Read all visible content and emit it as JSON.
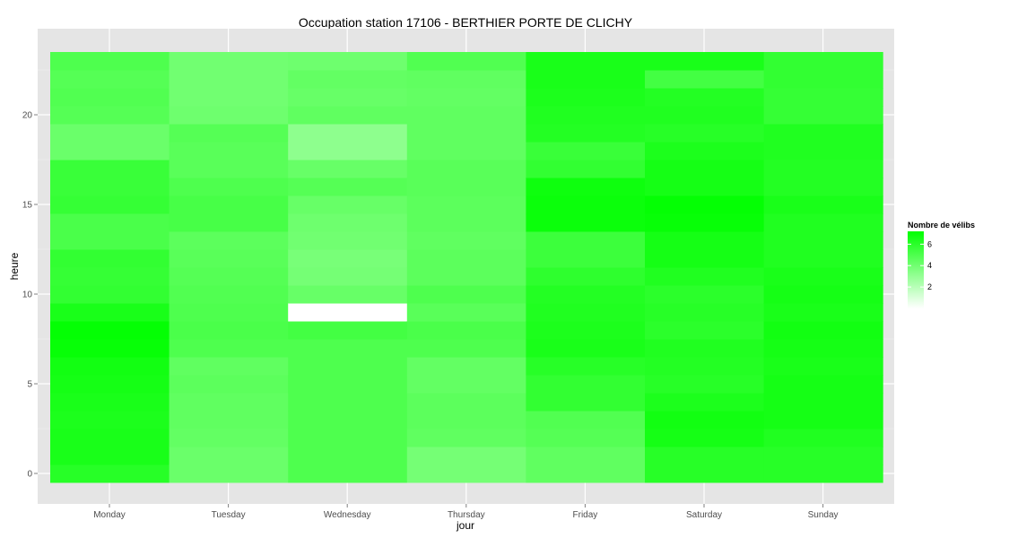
{
  "chart_data": {
    "type": "heatmap",
    "title": "Occupation station 17106 - BERTHIER PORTE DE CLICHY",
    "xlabel": "jour",
    "ylabel": "heure",
    "x_categories": [
      "Monday",
      "Tuesday",
      "Wednesday",
      "Thursday",
      "Friday",
      "Saturday",
      "Sunday"
    ],
    "y_ticks": [
      0,
      5,
      10,
      15,
      20
    ],
    "y_range": [
      -0.5,
      23.5
    ],
    "grid": true,
    "legend": {
      "title": "Nombre de vélibs",
      "ticks": [
        2,
        4,
        6
      ],
      "range": [
        0,
        7.2
      ],
      "low_color": "#ffffff",
      "high_color": "#00ff00",
      "placement": "right"
    },
    "missing": [
      {
        "day": "Wednesday",
        "hour": 9
      }
    ],
    "values": {
      "Monday": [
        6.1,
        6.5,
        6.5,
        6.4,
        6.5,
        6.6,
        6.7,
        7.0,
        7.1,
        6.5,
        5.8,
        5.7,
        5.8,
        5.1,
        5.1,
        5.7,
        5.6,
        5.6,
        4.2,
        4.2,
        4.8,
        4.9,
        4.8,
        5.0
      ],
      "Tuesday": [
        4.2,
        4.2,
        4.4,
        4.5,
        4.5,
        4.6,
        4.5,
        5.0,
        5.1,
        5.0,
        4.9,
        4.8,
        4.7,
        4.6,
        5.2,
        5.2,
        5.0,
        4.7,
        4.7,
        4.8,
        4.1,
        4.0,
        4.0,
        4.0
      ],
      "Wednesday": [
        5.0,
        5.0,
        5.0,
        5.0,
        5.0,
        5.0,
        5.0,
        5.0,
        5.3,
        null,
        4.3,
        3.9,
        3.8,
        4.0,
        4.1,
        4.3,
        4.8,
        4.3,
        3.2,
        3.2,
        4.5,
        4.3,
        4.4,
        4.1
      ],
      "Thursday": [
        3.9,
        3.9,
        4.5,
        4.6,
        4.6,
        4.4,
        4.4,
        5.0,
        5.1,
        4.7,
        5.0,
        4.6,
        4.6,
        4.5,
        4.6,
        4.6,
        4.7,
        4.7,
        4.5,
        4.5,
        4.5,
        4.4,
        4.5,
        4.9
      ],
      "Friday": [
        4.5,
        4.5,
        4.8,
        4.9,
        5.8,
        5.8,
        6.1,
        6.5,
        6.4,
        6.3,
        6.2,
        5.9,
        5.5,
        5.5,
        6.9,
        6.9,
        6.8,
        5.8,
        5.6,
        6.2,
        6.3,
        6.4,
        6.5,
        6.5
      ],
      "Saturday": [
        6.1,
        6.1,
        6.6,
        6.7,
        6.4,
        6.1,
        6.2,
        6.3,
        6.0,
        6.1,
        6.0,
        6.3,
        6.6,
        6.6,
        7.0,
        7.1,
        6.6,
        6.6,
        6.4,
        6.1,
        6.3,
        6.2,
        5.3,
        6.5
      ],
      "Sunday": [
        6.1,
        6.1,
        6.3,
        6.6,
        6.6,
        6.6,
        6.5,
        6.6,
        6.7,
        6.5,
        6.6,
        6.5,
        6.3,
        6.3,
        6.3,
        6.5,
        6.2,
        6.2,
        6.3,
        6.3,
        5.7,
        5.7,
        5.8,
        5.8
      ]
    }
  }
}
